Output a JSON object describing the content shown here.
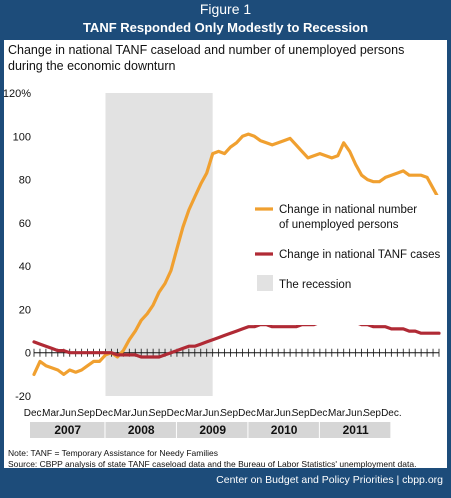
{
  "header": {
    "figure_label": "Figure 1",
    "title": "TANF Responded Only Modestly to Recession"
  },
  "subtitle_line1": "Change in national TANF caseload and number of unemployed persons",
  "subtitle_line2": "during the economic downturn",
  "note": "Note: TANF = Temporary Assistance for Needy Families",
  "source": "Source: CBPP analysis of state TANF caseload data and the Bureau of Labor Statistics' unemployment data.",
  "credit": "Center on Budget and Policy Priorities | cbpp.org",
  "colors": {
    "unemployed": "#f0a030",
    "tanf": "#b02a35",
    "recession": "#e2e2e2",
    "background_bar": "#1d4c7a",
    "year_band": "#d6d6d6"
  },
  "chart_data": {
    "type": "line",
    "ylim": [
      -20,
      120
    ],
    "yticks": [
      -20,
      0,
      20,
      40,
      60,
      80,
      100,
      120
    ],
    "ytick_labels": [
      "-20",
      "0",
      "20",
      "40",
      "60",
      "80",
      "100",
      "120%"
    ],
    "x_tick_labels": [
      "Dec.",
      "Mar.",
      "Jun.",
      "Sep.",
      "Dec.",
      "Mar.",
      "Jun.",
      "Sep.",
      "Dec.",
      "Mar.",
      "Jun.",
      "Sep.",
      "Dec.",
      "Mar.",
      "Jun.",
      "Sep.",
      "Dec.",
      "Mar.",
      "Jun.",
      "Sep.",
      "Dec."
    ],
    "years": [
      {
        "label": "2007",
        "start_month": 0,
        "end_month": 12
      },
      {
        "label": "2008",
        "start_month": 12,
        "end_month": 24
      },
      {
        "label": "2009",
        "start_month": 24,
        "end_month": 36
      },
      {
        "label": "2010",
        "start_month": 36,
        "end_month": 48
      },
      {
        "label": "2011",
        "start_month": 48,
        "end_month": 60
      }
    ],
    "recession": {
      "start_month": 12,
      "end_month": 30,
      "label": "The recession"
    },
    "legend_position": "center-right",
    "series": [
      {
        "name": "Change in national number of unemployed persons",
        "legend_lines": [
          "Change in national number",
          "of unemployed persons"
        ],
        "values": [
          -10,
          -4,
          -6,
          -7,
          -8,
          -10,
          -8,
          -9,
          -8,
          -6,
          -4,
          -4,
          -1,
          0,
          -2,
          1,
          6,
          10,
          15,
          18,
          22,
          28,
          32,
          38,
          48,
          58,
          66,
          72,
          78,
          83,
          92,
          93,
          92,
          95,
          97,
          100,
          101,
          100,
          98,
          97,
          96,
          97,
          98,
          99,
          96,
          93,
          90,
          91,
          92,
          91,
          90,
          91,
          97,
          93,
          87,
          82,
          80,
          79,
          79,
          81,
          82,
          83,
          84,
          82,
          82,
          82,
          81,
          76,
          71
        ]
      },
      {
        "name": "Change in national TANF cases",
        "legend_lines": [
          "Change in national TANF cases"
        ],
        "values": [
          5,
          4,
          3,
          2,
          1,
          1,
          0,
          0,
          0,
          0,
          0,
          0,
          0,
          0,
          -1,
          -1,
          -1,
          -1,
          -2,
          -2,
          -2,
          -2,
          -1,
          0,
          1,
          2,
          3,
          3,
          4,
          5,
          6,
          7,
          8,
          9,
          10,
          11,
          12,
          12,
          13,
          13,
          12,
          12,
          12,
          12,
          12,
          13,
          13,
          13,
          14,
          14,
          14,
          15,
          15,
          14,
          14,
          13,
          13,
          12,
          12,
          12,
          11,
          11,
          11,
          10,
          10,
          9,
          9,
          9,
          9
        ]
      }
    ]
  }
}
